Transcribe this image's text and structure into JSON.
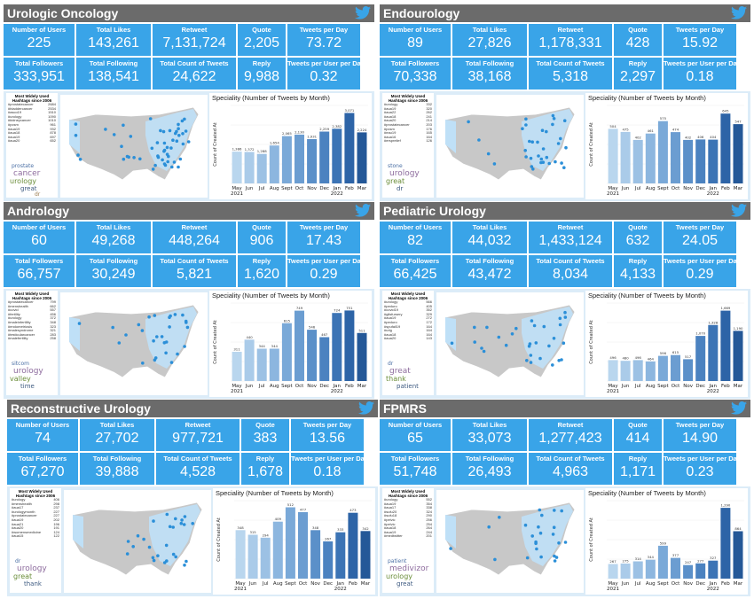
{
  "labels": {
    "users": "Number of Users",
    "likes": "Total Likes",
    "retweet": "Retweet",
    "quote": "Quote",
    "tpd": "Tweets per Day",
    "followers": "Total Followers",
    "following": "Total Following",
    "count": "Total Count of Tweets",
    "reply": "Reply",
    "tpupd": "Tweets per User per Day",
    "hashtag_title": "Most Widely Used Hashtags since 2006",
    "chart_title": "Speciality (Number of Tweets by Month)",
    "ylabel": "Count of Created At",
    "year_2021": "2021",
    "year_2022": "2022"
  },
  "colors": {
    "accent": "#39a4e8",
    "header": "#6b6b6b",
    "map_land": "#c8c8c8",
    "map_highlight": "#bfe0f7",
    "dot": "#2b8fd8"
  },
  "panels": [
    {
      "title": "Urologic Oncology",
      "stats": {
        "users": "225",
        "likes": "143,261",
        "retweet": "7,131,724",
        "quote": "2,205",
        "tpd": "73.72",
        "followers": "333,951",
        "following": "138,541",
        "count": "24,622",
        "reply": "9,988",
        "tpupd": "0.32"
      },
      "hashtags": [
        [
          "#prostatecancer",
          "2684"
        ],
        [
          "#bladdercancer",
          "2534"
        ],
        [
          "#asco19",
          "1510"
        ],
        [
          "#urology",
          "1090"
        ],
        [
          "#kidneycancer",
          "1010"
        ],
        [
          "#pcsm",
          "961"
        ],
        [
          "#aua19",
          "932"
        ],
        [
          "#aua18",
          "878"
        ],
        [
          "#aua19",
          "697"
        ],
        [
          "#aua20",
          "652"
        ]
      ],
      "words": [
        "prostate",
        "cancer",
        "urology",
        "great",
        "dr"
      ]
    },
    {
      "title": "Endourology",
      "stats": {
        "users": "89",
        "likes": "27,826",
        "retweet": "1,178,331",
        "quote": "428",
        "tpd": "15.92",
        "followers": "70,338",
        "following": "38,168",
        "count": "5,318",
        "reply": "2,297",
        "tpupd": "0.18"
      },
      "hashtags": [
        [
          "#urology",
          "332"
        ],
        [
          "#aua19",
          "320"
        ],
        [
          "#aua22",
          "262"
        ],
        [
          "#aua18",
          "241"
        ],
        [
          "#aua20",
          "214"
        ],
        [
          "#prostatecancer",
          "203"
        ],
        [
          "#pcsm",
          "176"
        ],
        [
          "#eau19",
          "165"
        ],
        [
          "#aua16",
          "164"
        ],
        [
          "#ersprelief",
          "126"
        ]
      ],
      "words": [
        "stone",
        "urology",
        "great",
        "dr"
      ]
    },
    {
      "title": "Andrology",
      "stats": {
        "users": "60",
        "likes": "49,268",
        "retweet": "448,264",
        "quote": "906",
        "tpd": "17.43",
        "followers": "66,757",
        "following": "30,249",
        "count": "5,821",
        "reply": "1,620",
        "tpupd": "0.29"
      },
      "hashtags": [
        [
          "#prostatecancer",
          "799"
        ],
        [
          "#menshealth",
          "662"
        ],
        [
          "#covid",
          "557"
        ],
        [
          "#fertility",
          "456"
        ],
        [
          "#urology",
          "372"
        ],
        [
          "#maleinfertility",
          "348"
        ],
        [
          "#endometriosis",
          "323"
        ],
        [
          "#malesyndrome",
          "321"
        ],
        [
          "#testicularcancer",
          "283"
        ],
        [
          "#malefertility",
          "258"
        ]
      ],
      "words": [
        "sitcom",
        "urology",
        "valley",
        "time"
      ]
    },
    {
      "title": "Pediatric Urology",
      "stats": {
        "users": "82",
        "likes": "44,032",
        "retweet": "1,433,124",
        "quote": "632",
        "tpd": "24.05",
        "followers": "66,425",
        "following": "43,472",
        "count": "8,034",
        "reply": "4,133",
        "tpupd": "0.29"
      },
      "hashtags": [
        [
          "#urology",
          "566"
        ],
        [
          "#peduro",
          "405"
        ],
        [
          "#covid19",
          "352"
        ],
        [
          "#gilsfursery",
          "329"
        ],
        [
          "#aua19",
          "272"
        ],
        [
          "#peduro",
          "172"
        ],
        [
          "#spufall19",
          "164"
        ],
        [
          "#urig",
          "164"
        ],
        [
          "#aua18",
          "164"
        ],
        [
          "#aua20",
          "143"
        ]
      ],
      "words": [
        "dr",
        "great",
        "thank",
        "patient"
      ]
    },
    {
      "title": "Reconstructive Urology",
      "stats": {
        "users": "74",
        "likes": "27,702",
        "retweet": "977,721",
        "quote": "383",
        "tpd": "13.56",
        "followers": "67,270",
        "following": "39,888",
        "count": "4,528",
        "reply": "1,678",
        "tpupd": "0.18"
      },
      "hashtags": [
        [
          "#urology",
          "406"
        ],
        [
          "#menshealth",
          "298"
        ],
        [
          "#aua17",
          "237"
        ],
        [
          "#urologymonth",
          "227"
        ],
        [
          "#prostatecancer",
          "227"
        ],
        [
          "#aua19",
          "202"
        ],
        [
          "#aua21",
          "196"
        ],
        [
          "#aua20",
          "191"
        ],
        [
          "#womensmedicine",
          "124"
        ],
        [
          "#aua15",
          "122"
        ]
      ],
      "words": [
        "dr",
        "urology",
        "great",
        "thank"
      ]
    },
    {
      "title": "FPMRS",
      "stats": {
        "users": "65",
        "likes": "33,073",
        "retweet": "1,277,423",
        "quote": "414",
        "tpd": "14.90",
        "followers": "51,748",
        "following": "26,493",
        "count": "4,963",
        "reply": "1,171",
        "tpupd": "0.23"
      },
      "hashtags": [
        [
          "#urology",
          "552"
        ],
        [
          "#aua19",
          "354"
        ],
        [
          "#aua17",
          "338"
        ],
        [
          "#sufu20",
          "324"
        ],
        [
          "#sufu18",
          "290"
        ],
        [
          "#pelvic",
          "256"
        ],
        [
          "#pelvic",
          "254"
        ],
        [
          "#aua18",
          "264"
        ],
        [
          "#aua19",
          "244"
        ],
        [
          "#medtwitter",
          "201"
        ]
      ],
      "words": [
        "patient",
        "medivizor",
        "urology",
        "great"
      ]
    }
  ],
  "chart_data": [
    {
      "type": "bar",
      "title": "Speciality (Number of Tweets by Month)",
      "ylabel": "Count of Created At",
      "xlabel": "",
      "categories": [
        "May",
        "Jun",
        "Jul",
        "Aug",
        "Sept",
        "Oct",
        "Nov",
        "Dec",
        "Jan",
        "Feb",
        "Mar"
      ],
      "values": [
        1386,
        1372,
        1288,
        1654,
        2065,
        2130,
        1931,
        2259,
        2382,
        3071,
        2224
      ],
      "labels": [
        "1,386",
        "1,372",
        "1,288",
        "1,654",
        "2,065",
        "2,130",
        "1,931",
        "2,259",
        "2,382",
        "3,071",
        "2,224"
      ],
      "ylim": [
        0,
        3400
      ]
    },
    {
      "type": "bar",
      "title": "Speciality (Number of Tweets by Month)",
      "ylabel": "Count of Created At",
      "xlabel": "",
      "categories": [
        "May",
        "Jun",
        "Jul",
        "Aug",
        "Sept",
        "Oct",
        "Nov",
        "Dec",
        "Jan",
        "Feb",
        "Mar"
      ],
      "values": [
        504,
        475,
        402,
        461,
        575,
        474,
        402,
        406,
        404,
        645,
        547
      ],
      "labels": [
        "504",
        "475",
        "402",
        "461",
        "575",
        "474",
        "402",
        "406",
        "404",
        "645",
        "547"
      ],
      "ylim": [
        0,
        720
      ]
    },
    {
      "type": "bar",
      "title": "Speciality (Number of Tweets by Month)",
      "ylabel": "Count of Created At",
      "xlabel": "",
      "categories": [
        "May",
        "Jun",
        "Jul",
        "Aug",
        "Sept",
        "Oct",
        "Nov",
        "Dec",
        "Jan",
        "Feb",
        "Mar"
      ],
      "values": [
        311,
        440,
        344,
        344,
        615,
        749,
        546,
        467,
        724,
        751,
        511
      ],
      "labels": [
        "311",
        "440",
        "344",
        "344",
        "615",
        "749",
        "546",
        "467",
        "724",
        "751",
        "511"
      ],
      "ylim": [
        0,
        830
      ]
    },
    {
      "type": "bar",
      "title": "Speciality (Number of Tweets by Month)",
      "ylabel": "Count of Created At",
      "xlabel": "",
      "categories": [
        "May",
        "Jun",
        "Jul",
        "Aug",
        "Sept",
        "Oct",
        "Nov",
        "Dec",
        "Jan",
        "Feb",
        "Mar"
      ],
      "values": [
        496,
        480,
        496,
        464,
        596,
        615,
        517,
        1070,
        1328,
        1669,
        1190
      ],
      "labels": [
        "496",
        "480",
        "496",
        "464",
        "596",
        "615",
        "517",
        "1,070",
        "1,328",
        "1,669",
        "1,190"
      ],
      "ylim": [
        0,
        1850
      ]
    },
    {
      "type": "bar",
      "title": "Speciality (Number of Tweets by Month)",
      "ylabel": "Count of Created At",
      "xlabel": "",
      "categories": [
        "May",
        "Jun",
        "Jul",
        "Aug",
        "Sept",
        "Oct",
        "Nov",
        "Dec",
        "Jan",
        "Feb",
        "Mar"
      ],
      "values": [
        348,
        315,
        294,
        409,
        512,
        477,
        348,
        267,
        333,
        473,
        342
      ],
      "labels": [
        "348",
        "315",
        "294",
        "409",
        "512",
        "477",
        "348",
        "267",
        "333",
        "473",
        "342"
      ],
      "ylim": [
        0,
        560
      ]
    },
    {
      "type": "bar",
      "title": "Speciality (Number of Tweets by Month)",
      "ylabel": "Count of Created At",
      "xlabel": "",
      "categories": [
        "May",
        "Jun",
        "Jul",
        "Aug",
        "Sept",
        "Oct",
        "Nov",
        "Dec",
        "Jan",
        "Feb",
        "Mar"
      ],
      "values": [
        267,
        275,
        314,
        344,
        599,
        377,
        247,
        277,
        327,
        1290,
        864
      ],
      "labels": [
        "267",
        "275",
        "314",
        "344",
        "599",
        "377",
        "247",
        "277",
        "327",
        "1,290",
        "864"
      ],
      "ylim": [
        0,
        1420
      ]
    }
  ]
}
